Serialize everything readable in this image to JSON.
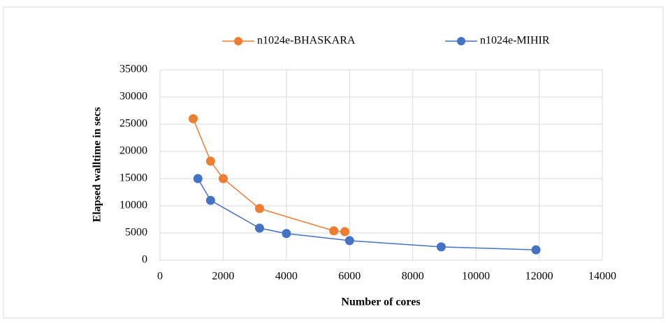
{
  "chart_data": {
    "type": "line",
    "xlabel": "Number of cores",
    "ylabel": "Elapsed walltime in secs",
    "xlim": [
      0,
      14000
    ],
    "xticks": [
      0,
      2000,
      4000,
      6000,
      8000,
      10000,
      12000,
      14000
    ],
    "ylim": [
      0,
      35000
    ],
    "yticks": [
      0,
      5000,
      10000,
      15000,
      20000,
      25000,
      30000,
      35000
    ],
    "grid": true,
    "legend": "top",
    "series": [
      {
        "name": "n1024e-BHASKARA",
        "color": "#ed7d31",
        "x": [
          1050,
          1600,
          2000,
          3150,
          5500,
          5850
        ],
        "values": [
          26000,
          18200,
          15000,
          9500,
          5400,
          5250
        ]
      },
      {
        "name": "n1024e-MIHIR",
        "color": "#4472c4",
        "x": [
          1200,
          1600,
          3150,
          4000,
          6000,
          8900,
          11900
        ],
        "values": [
          15000,
          11000,
          5900,
          4900,
          3600,
          2450,
          1900
        ]
      }
    ]
  }
}
